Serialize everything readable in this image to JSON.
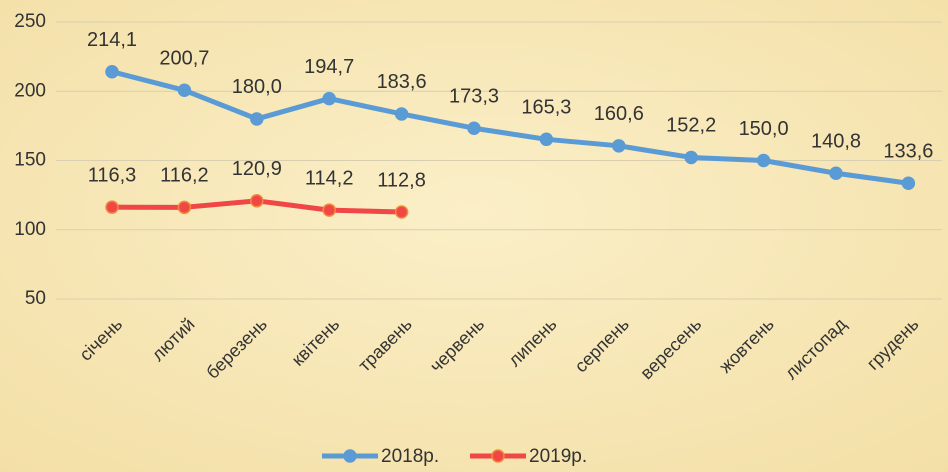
{
  "chart_data": {
    "type": "line",
    "categories": [
      "січень",
      "лютий",
      "березень",
      "квітень",
      "травень",
      "червень",
      "липень",
      "серпень",
      "вересень",
      "жовтень",
      "листопад",
      "грудень"
    ],
    "series": [
      {
        "name": "2018р.",
        "color": "#5b9bd5",
        "values": [
          214.1,
          200.7,
          180.0,
          194.7,
          183.6,
          173.3,
          165.3,
          160.6,
          152.2,
          150.0,
          140.8,
          133.6
        ],
        "value_labels": [
          "214,1",
          "200,7",
          "180,0",
          "194,7",
          "183,6",
          "173,3",
          "165,3",
          "160,6",
          "152,2",
          "150,0",
          "140,8",
          "133,6"
        ]
      },
      {
        "name": "2019р.",
        "color": "#f04646",
        "values": [
          116.3,
          116.2,
          120.9,
          114.2,
          112.8,
          null,
          null,
          null,
          null,
          null,
          null,
          null
        ],
        "value_labels": [
          "116,3",
          "116,2",
          "120,9",
          "114,2",
          "112,8",
          null,
          null,
          null,
          null,
          null,
          null,
          null
        ]
      }
    ],
    "ylim": [
      50,
      250
    ],
    "yticks": [
      50,
      100,
      150,
      200,
      250
    ],
    "grid": true,
    "legend": "bottom"
  }
}
